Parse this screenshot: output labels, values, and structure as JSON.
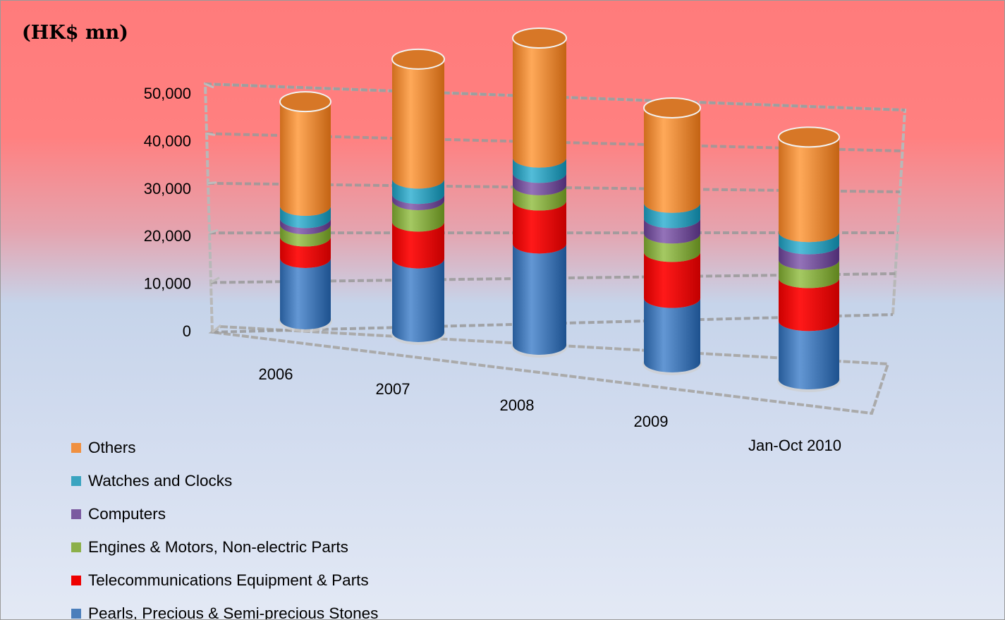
{
  "chart_data": {
    "type": "bar",
    "stacked": true,
    "style": "3d-cylinder",
    "unit_label": "(HK$ mn)",
    "categories": [
      "2006",
      "2007",
      "2008",
      "2009",
      "Jan-Oct 2010"
    ],
    "y_ticks": [
      "0",
      "10,000",
      "20,000",
      "30,000",
      "40,000",
      "50,000"
    ],
    "ylim": [
      0,
      50000
    ],
    "grid": true,
    "legend_position": "bottom-left",
    "series": [
      {
        "name": "Pearls, Precious & Semi-precious Stones",
        "color": "#4a7ebb",
        "values": [
          10000,
          12000,
          16500,
          10500,
          9500
        ]
      },
      {
        "name": "Telecommunications Equipment & Parts",
        "color": "#ee0000",
        "values": [
          3500,
          6000,
          7000,
          7500,
          7000
        ]
      },
      {
        "name": "Engines & Motors, Non-electric Parts",
        "color": "#8cb04a",
        "values": [
          2000,
          3500,
          2500,
          3000,
          3000
        ]
      },
      {
        "name": "Computers",
        "color": "#7b5aa0",
        "values": [
          1000,
          1000,
          2000,
          2500,
          2500
        ]
      },
      {
        "name": "Watches and Clocks",
        "color": "#3aa4c0",
        "values": [
          2000,
          2500,
          2500,
          2500,
          2000
        ]
      },
      {
        "name": "Others",
        "color": "#f09040",
        "values": [
          17000,
          19500,
          19500,
          15500,
          15500
        ]
      }
    ]
  }
}
